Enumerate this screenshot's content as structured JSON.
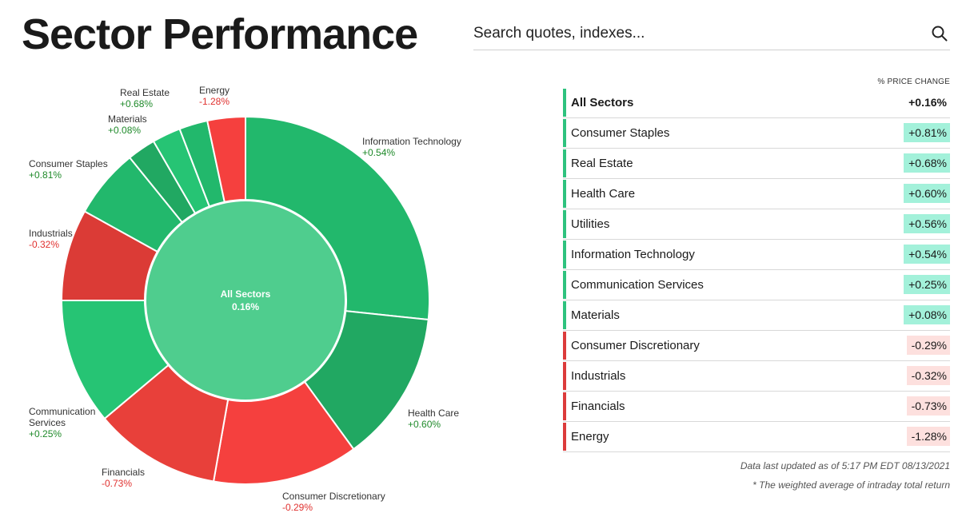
{
  "header": {
    "title": "Sector Performance"
  },
  "search": {
    "placeholder": "Search quotes, indexes..."
  },
  "icons": {
    "search": "search-icon"
  },
  "colors": {
    "positive_slice": "#22b86c",
    "positive_slice_alt": [
      "#22b86c",
      "#21a862",
      "#26c474"
    ],
    "negative_slice": "#f5403e",
    "negative_slice_alt": [
      "#f5403e",
      "#e8403a",
      "#db3b36"
    ],
    "center": "#4fcd8e",
    "positive_text": "#1f8a2a",
    "negative_text": "#e0312f",
    "positive_bar": "#2ec27e",
    "negative_bar": "#dc3b3b",
    "positive_badge": "#a3f1da",
    "negative_badge": "#fde0de"
  },
  "table": {
    "header": "% PRICE CHANGE",
    "total": {
      "name": "All Sectors",
      "value": "+0.16%"
    },
    "rows": [
      {
        "name": "Consumer Staples",
        "value": "+0.81%",
        "sign": "pos"
      },
      {
        "name": "Real Estate",
        "value": "+0.68%",
        "sign": "pos"
      },
      {
        "name": "Health Care",
        "value": "+0.60%",
        "sign": "pos"
      },
      {
        "name": "Utilities",
        "value": "+0.56%",
        "sign": "pos"
      },
      {
        "name": "Information Technology",
        "value": "+0.54%",
        "sign": "pos"
      },
      {
        "name": "Communication Services",
        "value": "+0.25%",
        "sign": "pos"
      },
      {
        "name": "Materials",
        "value": "+0.08%",
        "sign": "pos"
      },
      {
        "name": "Consumer Discretionary",
        "value": "-0.29%",
        "sign": "neg"
      },
      {
        "name": "Industrials",
        "value": "-0.32%",
        "sign": "neg"
      },
      {
        "name": "Financials",
        "value": "-0.73%",
        "sign": "neg"
      },
      {
        "name": "Energy",
        "value": "-1.28%",
        "sign": "neg"
      }
    ]
  },
  "footer": {
    "updated": "Data last updated as of 5:17 PM EDT 08/13/2021",
    "note": "* The weighted average of intraday total return"
  },
  "chart_data": {
    "type": "pie",
    "center_label": {
      "name": "All Sectors",
      "value": "0.16%"
    },
    "slices": [
      {
        "name": "Information Technology",
        "label": "+0.54%",
        "change": 0.54,
        "weight_deg": 96
      },
      {
        "name": "Health Care",
        "label": "+0.60%",
        "change": 0.6,
        "weight_deg": 48
      },
      {
        "name": "Consumer Discretionary",
        "label": "-0.29%",
        "change": -0.29,
        "weight_deg": 46
      },
      {
        "name": "Financials",
        "label": "-0.73%",
        "change": -0.73,
        "weight_deg": 40
      },
      {
        "name": "Communication Services",
        "label": "+0.25%",
        "change": 0.25,
        "weight_deg": 40
      },
      {
        "name": "Industrials",
        "label": "-0.32%",
        "change": -0.32,
        "weight_deg": 29
      },
      {
        "name": "Consumer Staples",
        "label": "+0.81%",
        "change": 0.81,
        "weight_deg": 22
      },
      {
        "name": "Materials",
        "label": "+0.08%",
        "change": 0.08,
        "weight_deg": 9
      },
      {
        "name": "Utilities",
        "label": "",
        "change": 0.56,
        "weight_deg": 9
      },
      {
        "name": "Real Estate",
        "label": "+0.68%",
        "change": 0.68,
        "weight_deg": 9
      },
      {
        "name": "Energy",
        "label": "-1.28%",
        "change": -1.28,
        "weight_deg": 12
      }
    ],
    "labelled": [
      "Real Estate",
      "Energy",
      "Materials",
      "Information Technology",
      "Consumer Staples",
      "Industrials",
      "Communication Services",
      "Health Care",
      "Financials",
      "Consumer Discretionary"
    ]
  }
}
